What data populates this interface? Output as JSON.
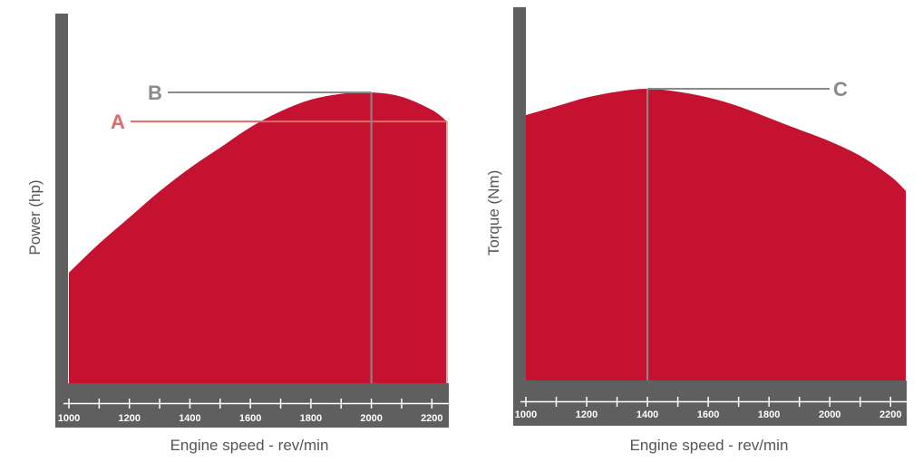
{
  "colors": {
    "fill": "#c41230",
    "axis": "#5f5f60",
    "marker_a": "#e06a66",
    "marker_line": "#8a8a8a",
    "tick_text": "#ffffff",
    "label_text": "#555555"
  },
  "chart_data": [
    {
      "type": "area",
      "xlabel": "Engine speed - rev/min",
      "ylabel": "Power (hp)",
      "xlim": [
        1000,
        2250
      ],
      "x_ticks": [
        1000,
        1200,
        1400,
        1600,
        1800,
        2000,
        2200
      ],
      "x": [
        1000,
        1100,
        1200,
        1300,
        1400,
        1500,
        1600,
        1700,
        1800,
        1900,
        2000,
        2100,
        2200,
        2250
      ],
      "values": [
        0.38,
        0.48,
        0.57,
        0.66,
        0.74,
        0.81,
        0.88,
        0.935,
        0.975,
        0.995,
        1.0,
        0.985,
        0.94,
        0.9
      ],
      "annotations": [
        {
          "label": "A",
          "x": 2250,
          "y": 0.9,
          "color": "#e06a66"
        },
        {
          "label": "B",
          "x": 2000,
          "y": 1.0,
          "color": "#8a8a8a"
        }
      ]
    },
    {
      "type": "area",
      "xlabel": "Engine speed - rev/min",
      "ylabel": "Torque (Nm)",
      "xlim": [
        1000,
        2250
      ],
      "x_ticks": [
        1000,
        1200,
        1400,
        1600,
        1800,
        2000,
        2200
      ],
      "x": [
        1000,
        1100,
        1200,
        1300,
        1400,
        1500,
        1600,
        1700,
        1800,
        1900,
        2000,
        2100,
        2200,
        2250
      ],
      "values": [
        0.91,
        0.94,
        0.97,
        0.99,
        1.0,
        0.99,
        0.97,
        0.94,
        0.9,
        0.86,
        0.82,
        0.77,
        0.7,
        0.65
      ],
      "annotations": [
        {
          "label": "C",
          "x": 1400,
          "y": 1.0,
          "color": "#8a8a8a"
        }
      ]
    }
  ]
}
